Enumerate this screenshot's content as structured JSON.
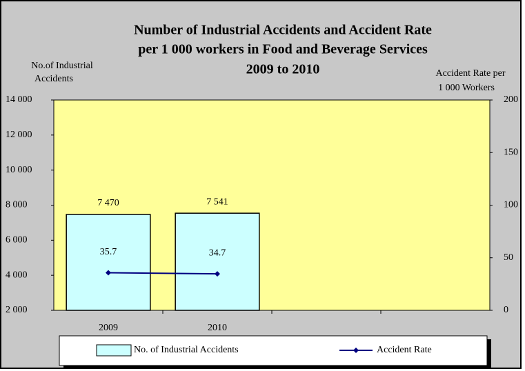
{
  "chart_data": {
    "type": "bar",
    "title": [
      "Number of Industrial Accidents and Accident Rate",
      "per 1 000 workers in Food and Beverage Services",
      "2009 to 2010"
    ],
    "y_label": [
      "No.of Industrial",
      "Accidents"
    ],
    "y2_label": [
      "Accident Rate per",
      "1 000 Workers"
    ],
    "categories": [
      "2009",
      "2010",
      null,
      null
    ],
    "series": [
      {
        "name": "No. of Industrial Accidents",
        "type": "bar",
        "color": "#ccffff",
        "values": [
          7470,
          7541,
          null,
          null
        ],
        "value_labels": [
          "7 470",
          "7 541",
          null,
          null
        ]
      },
      {
        "name": "Accident Rate",
        "type": "line",
        "axis": "y2",
        "color": "#000080",
        "values": [
          35.7,
          34.7,
          null,
          null
        ]
      }
    ],
    "ylim": [
      2000,
      14000
    ],
    "yticks": [
      {
        "value": 2000,
        "label": "2 000"
      },
      {
        "value": 4000,
        "label": "4 000"
      },
      {
        "value": 6000,
        "label": "6 000"
      },
      {
        "value": 8000,
        "label": "8 000"
      },
      {
        "value": 10000,
        "label": "10 000"
      },
      {
        "value": 12000,
        "label": "12 000"
      },
      {
        "value": 14000,
        "label": "14 000"
      }
    ],
    "y2lim": [
      0,
      200
    ],
    "y2ticks": [
      0,
      50,
      100,
      150,
      200
    ],
    "plot_background": "#ffff99"
  }
}
